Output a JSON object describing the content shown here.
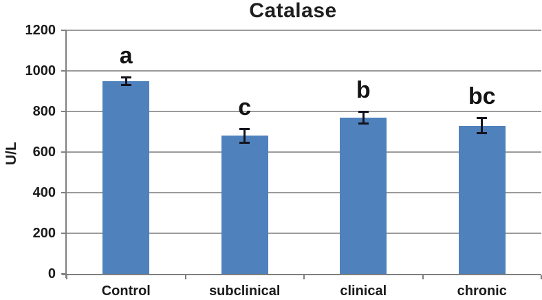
{
  "chart_data": {
    "type": "bar",
    "title": "Catalase",
    "xlabel": "",
    "ylabel": "U/L",
    "categories": [
      "Control",
      "subclinical",
      "clinical",
      "chronic"
    ],
    "values": [
      950,
      680,
      770,
      730
    ],
    "error_bars": [
      20,
      35,
      30,
      38
    ],
    "significance_letters": [
      "a",
      "c",
      "b",
      "bc"
    ],
    "ylim": [
      0,
      1200
    ],
    "yticks": [
      0,
      200,
      400,
      600,
      800,
      1000,
      1200
    ],
    "grid": true,
    "legend": false,
    "bar_color": "#4f81bd",
    "gridline_color": "#9b9b9b",
    "axis_color": "#7f7f7f",
    "error_bar_color": "#14141e",
    "text_color": "#1a1a1a"
  }
}
